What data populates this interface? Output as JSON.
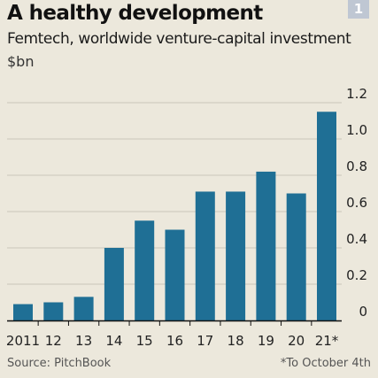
{
  "header": {
    "title": "A healthy development",
    "badge": "1",
    "subtitle": "Femtech, worldwide venture-capital investment",
    "unit": "$bn"
  },
  "footer": {
    "source": "Source: PitchBook",
    "note": "*To October 4th"
  },
  "colors": {
    "bar": "#1f6f95",
    "grid": "#cac6ba",
    "axis": "#111111",
    "background": "#ece8dc"
  },
  "chart_data": {
    "type": "bar",
    "categories": [
      "2011",
      "12",
      "13",
      "14",
      "15",
      "16",
      "17",
      "18",
      "19",
      "20",
      "21*"
    ],
    "values": [
      0.09,
      0.1,
      0.13,
      0.4,
      0.55,
      0.5,
      0.71,
      0.71,
      0.82,
      0.7,
      1.15
    ],
    "ylim": [
      0,
      1.2
    ],
    "yticks": [
      "0",
      "0.2",
      "0.4",
      "0.6",
      "0.8",
      "1.0",
      "1.2"
    ],
    "grid": true,
    "yaxis_position": "right"
  }
}
